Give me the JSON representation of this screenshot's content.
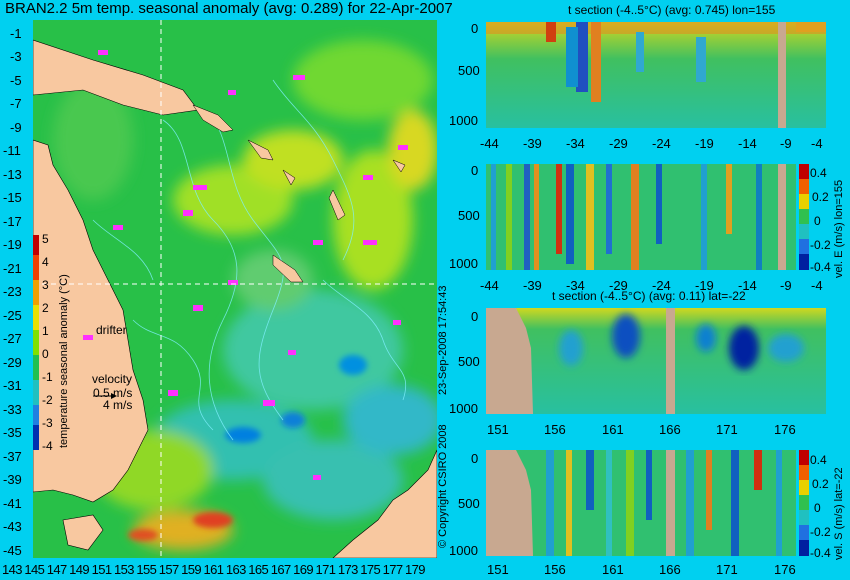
{
  "title": "BRAN2.2 5m temp. seasonal anomaly (avg: 0.289) for 22-Apr-2007",
  "map": {
    "lat_ticks": [
      "-1",
      "-3",
      "-5",
      "-7",
      "-9",
      "-11",
      "-13",
      "-15",
      "-17",
      "-19",
      "-21",
      "-23",
      "-25",
      "-27",
      "-29",
      "-31",
      "-33",
      "-35",
      "-37",
      "-39",
      "-41",
      "-43",
      "-45"
    ],
    "lon_ticks": [
      "143",
      "145",
      "147",
      "149",
      "151",
      "153",
      "155",
      "157",
      "159",
      "161",
      "163",
      "165",
      "167",
      "169",
      "171",
      "173",
      "175",
      "177",
      "179"
    ],
    "colorbar_label": "temperature seasonal anomaly (°C)",
    "colorbar_ticks": [
      "5",
      "4",
      "3",
      "2",
      "1",
      "0",
      "-1",
      "-2",
      "-3",
      "-4"
    ],
    "drifter_label": "drifter",
    "velocity_label": "velocity",
    "velocity_values": [
      "0.5 m/s",
      "4 m/s"
    ]
  },
  "copyright": "© Copyright CSIRO 2008",
  "date_stamp": "23-Sep-2008 17:54:43",
  "panels": [
    {
      "title": "t section (-4..5°C) (avg: 0.745) lon=155",
      "y_ticks": [
        "0",
        "500",
        "1000"
      ],
      "x_ticks": [
        "-44",
        "-39",
        "-34",
        "-29",
        "-24",
        "-19",
        "-14",
        "-9",
        "-4"
      ],
      "colorbar": null
    },
    {
      "title": "",
      "y_ticks": [
        "0",
        "500",
        "1000"
      ],
      "x_ticks": [
        "-44",
        "-39",
        "-34",
        "-29",
        "-24",
        "-19",
        "-14",
        "-9",
        "-4"
      ],
      "colorbar": {
        "label": "vel. E (m/s) lon=155",
        "ticks": [
          "0.4",
          "0.2",
          "0",
          "-0.2",
          "-0.4"
        ]
      }
    },
    {
      "title": "t section (-4..5°C) (avg: 0.11) lat=-22",
      "y_ticks": [
        "0",
        "500",
        "1000"
      ],
      "x_ticks": [
        "151",
        "156",
        "161",
        "166",
        "171",
        "176"
      ],
      "colorbar": null
    },
    {
      "title": "",
      "y_ticks": [
        "0",
        "500",
        "1000"
      ],
      "x_ticks": [
        "151",
        "156",
        "161",
        "166",
        "171",
        "176"
      ],
      "colorbar": {
        "label": "vel. S (m/s) lat=-22",
        "ticks": [
          "0.4",
          "0.2",
          "0",
          "-0.2",
          "-0.4"
        ]
      }
    }
  ],
  "colors": {
    "background": "#00d0f0",
    "land": "#f8c8a0",
    "section_land": "#c8a890",
    "ocean_green": "#20c050",
    "drifter_magenta": "#ff30ff",
    "contour": "#80f0ff"
  }
}
